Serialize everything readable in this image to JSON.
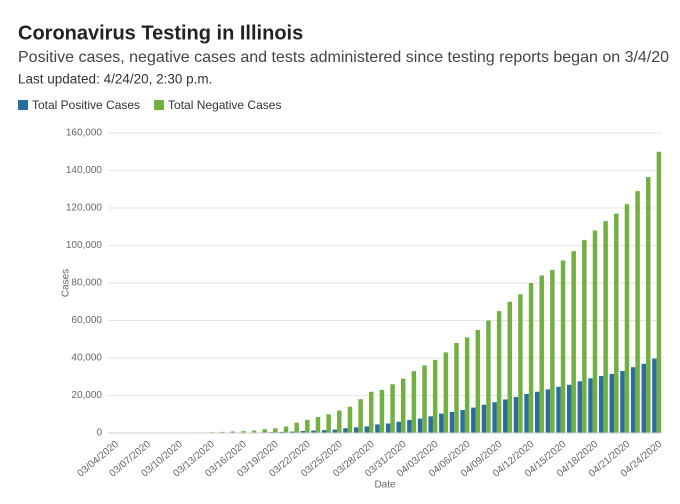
{
  "chart_data": {
    "type": "bar",
    "title": "Coronavirus Testing in Illinois",
    "subtitle": "Positive cases, negative cases and tests administered since testing reports began on 3/4/20",
    "note": "Last updated: 4/24/20, 2:30 p.m.",
    "x_label": "Date",
    "y_label": "Cases",
    "categories": [
      "03/04/2020",
      null,
      null,
      "03/07/2020",
      null,
      null,
      "03/10/2020",
      null,
      null,
      "03/13/2020",
      null,
      null,
      "03/16/2020",
      null,
      null,
      "03/19/2020",
      null,
      null,
      "03/22/2020",
      null,
      null,
      "03/25/2020",
      null,
      null,
      "03/28/2020",
      null,
      null,
      "03/31/2020",
      null,
      null,
      "04/03/2020",
      null,
      null,
      "04/06/2020",
      null,
      null,
      "04/09/2020",
      null,
      null,
      "04/12/2020",
      null,
      null,
      "04/15/2020",
      null,
      null,
      "04/18/2020",
      null,
      null,
      "04/21/2020",
      null,
      null,
      "04/24/2020"
    ],
    "series": [
      {
        "name": "Total Positive Cases",
        "color": "#2a6e9e",
        "values": [
          4,
          5,
          5,
          6,
          7,
          11,
          19,
          25,
          32,
          46,
          64,
          93,
          105,
          160,
          288,
          422,
          585,
          753,
          1049,
          1285,
          1535,
          1865,
          2538,
          3026,
          3491,
          4596,
          5057,
          5994,
          6980,
          7695,
          8904,
          10357,
          11256,
          12262,
          13549,
          15078,
          16422,
          17887,
          19180,
          20852,
          22025,
          23247,
          24593,
          25733,
          27575,
          29160,
          30357,
          31508,
          33059,
          35108,
          36934,
          39658
        ]
      },
      {
        "name": "Total Negative Cases",
        "color": "#72b043",
        "values": [
          100,
          120,
          150,
          180,
          200,
          220,
          250,
          280,
          300,
          400,
          600,
          800,
          1000,
          1300,
          2000,
          2500,
          3500,
          5500,
          7000,
          8500,
          10000,
          12000,
          14000,
          18000,
          22000,
          23000,
          26000,
          29000,
          33000,
          36000,
          39000,
          43000,
          48000,
          51000,
          55000,
          60000,
          65000,
          70000,
          74000,
          80000,
          84000,
          87000,
          92000,
          97000,
          103000,
          108000,
          113000,
          117000,
          122000,
          129000,
          136500,
          150000
        ]
      }
    ],
    "ylim": [
      0,
      160000
    ],
    "yticks": [
      0,
      {
        "value": 20000,
        "label": "20,000"
      },
      {
        "value": 40000,
        "label": "40,000"
      },
      {
        "value": 60000,
        "label": "60,000"
      },
      {
        "value": 80000,
        "label": "80,000"
      },
      {
        "value": 100000,
        "label": "100,000"
      },
      {
        "value": 120000,
        "label": "120,000"
      },
      {
        "value": 140000,
        "label": "140,000"
      },
      {
        "value": 160000,
        "label": "160,000"
      }
    ],
    "grid": true
  }
}
